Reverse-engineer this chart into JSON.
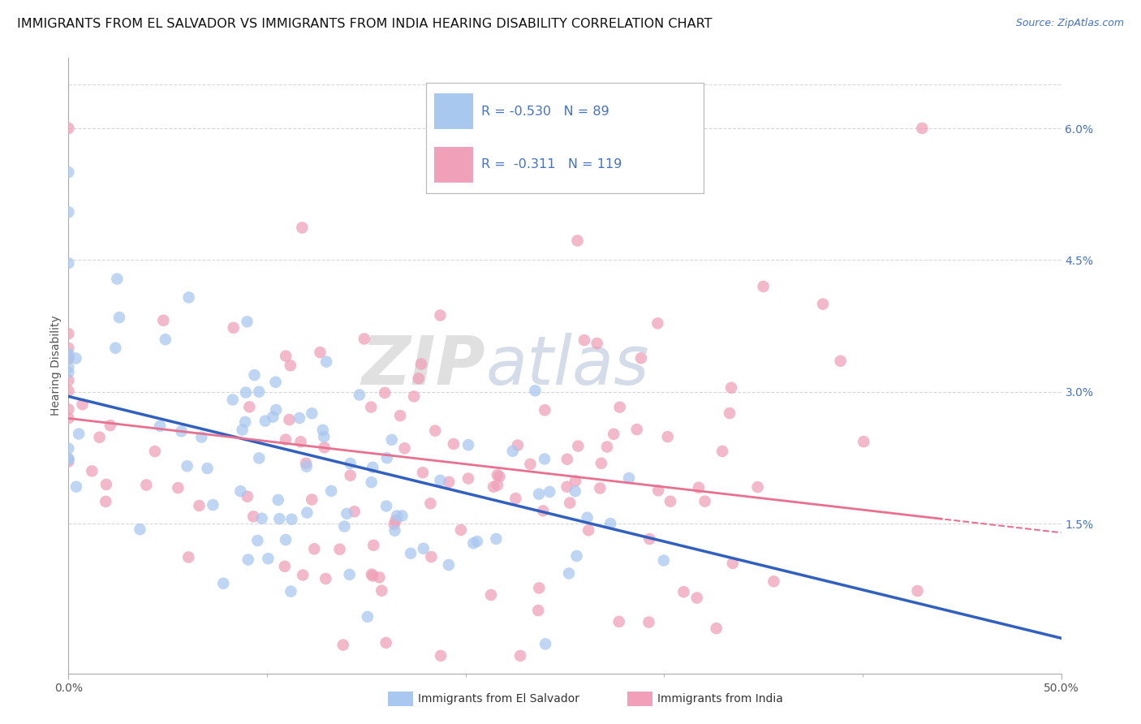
{
  "title": "IMMIGRANTS FROM EL SALVADOR VS IMMIGRANTS FROM INDIA HEARING DISABILITY CORRELATION CHART",
  "source": "Source: ZipAtlas.com",
  "ylabel": "Hearing Disability",
  "right_yticks": [
    "6.0%",
    "4.5%",
    "3.0%",
    "1.5%"
  ],
  "right_ytick_vals": [
    0.06,
    0.045,
    0.03,
    0.015
  ],
  "xlim": [
    0.0,
    0.5
  ],
  "ylim": [
    -0.002,
    0.068
  ],
  "watermark_zip": "ZIP",
  "watermark_atlas": "atlas",
  "legend_blue_r": "-0.530",
  "legend_blue_n": "89",
  "legend_pink_r": "-0.311",
  "legend_pink_n": "119",
  "color_blue": "#A8C8F0",
  "color_pink": "#F0A0B8",
  "color_blue_line": "#3060C0",
  "color_pink_line": "#E87090",
  "color_text_blue": "#4472C4",
  "color_text_dark": "#333333",
  "color_grid": "#D8D8D8",
  "title_fontsize": 11.5,
  "label_fontsize": 10,
  "tick_fontsize": 10,
  "blue_intercept": 0.0295,
  "blue_slope": -0.055,
  "pink_intercept": 0.027,
  "pink_slope": -0.026
}
